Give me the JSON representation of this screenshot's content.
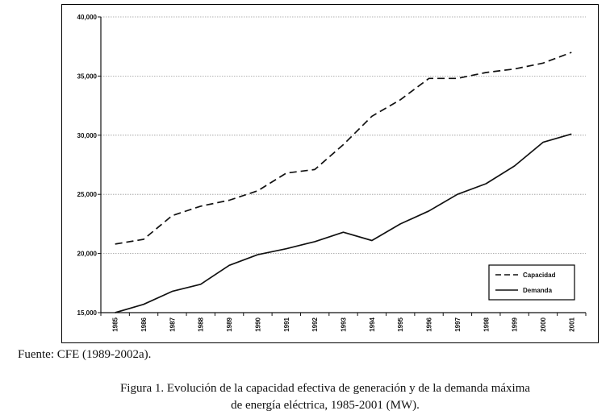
{
  "chart_data": {
    "type": "line",
    "title": "",
    "xlabel": "",
    "ylabel": "",
    "x": [
      "1985",
      "1986",
      "1987",
      "1988",
      "1989",
      "1990",
      "1991",
      "1992",
      "1993",
      "1994",
      "1995",
      "1996",
      "1997",
      "1998",
      "1999",
      "2000",
      "2001"
    ],
    "series": [
      {
        "name": "Capacidad",
        "style": "dashed",
        "values": [
          20800,
          21200,
          23200,
          24000,
          24500,
          25300,
          26800,
          27100,
          29200,
          31600,
          33000,
          34800,
          34800,
          35300,
          35600,
          36100,
          37000
        ]
      },
      {
        "name": "Demanda",
        "style": "solid",
        "values": [
          15000,
          15700,
          16800,
          17400,
          19000,
          19900,
          20400,
          21000,
          21800,
          21100,
          22500,
          23600,
          25000,
          25900,
          27400,
          29400,
          30100
        ]
      }
    ],
    "ylim": [
      15000,
      40000
    ],
    "yticks": [
      15000,
      20000,
      25000,
      30000,
      35000,
      40000
    ],
    "ytick_labels": [
      "15,000",
      "20,000",
      "25,000",
      "30,000",
      "35,000",
      "40,000"
    ],
    "grid": true,
    "legend_position": "bottom-right"
  },
  "source_note": "Fuente: CFE (1989-2002a).",
  "caption": {
    "line1": "Figura 1. Evolución de la capacidad efectiva de generación y de la demanda máxima",
    "line2": "de energía eléctrica, 1985-2001 (MW)."
  },
  "colors": {
    "line": "#111111",
    "grid": "#999999"
  }
}
